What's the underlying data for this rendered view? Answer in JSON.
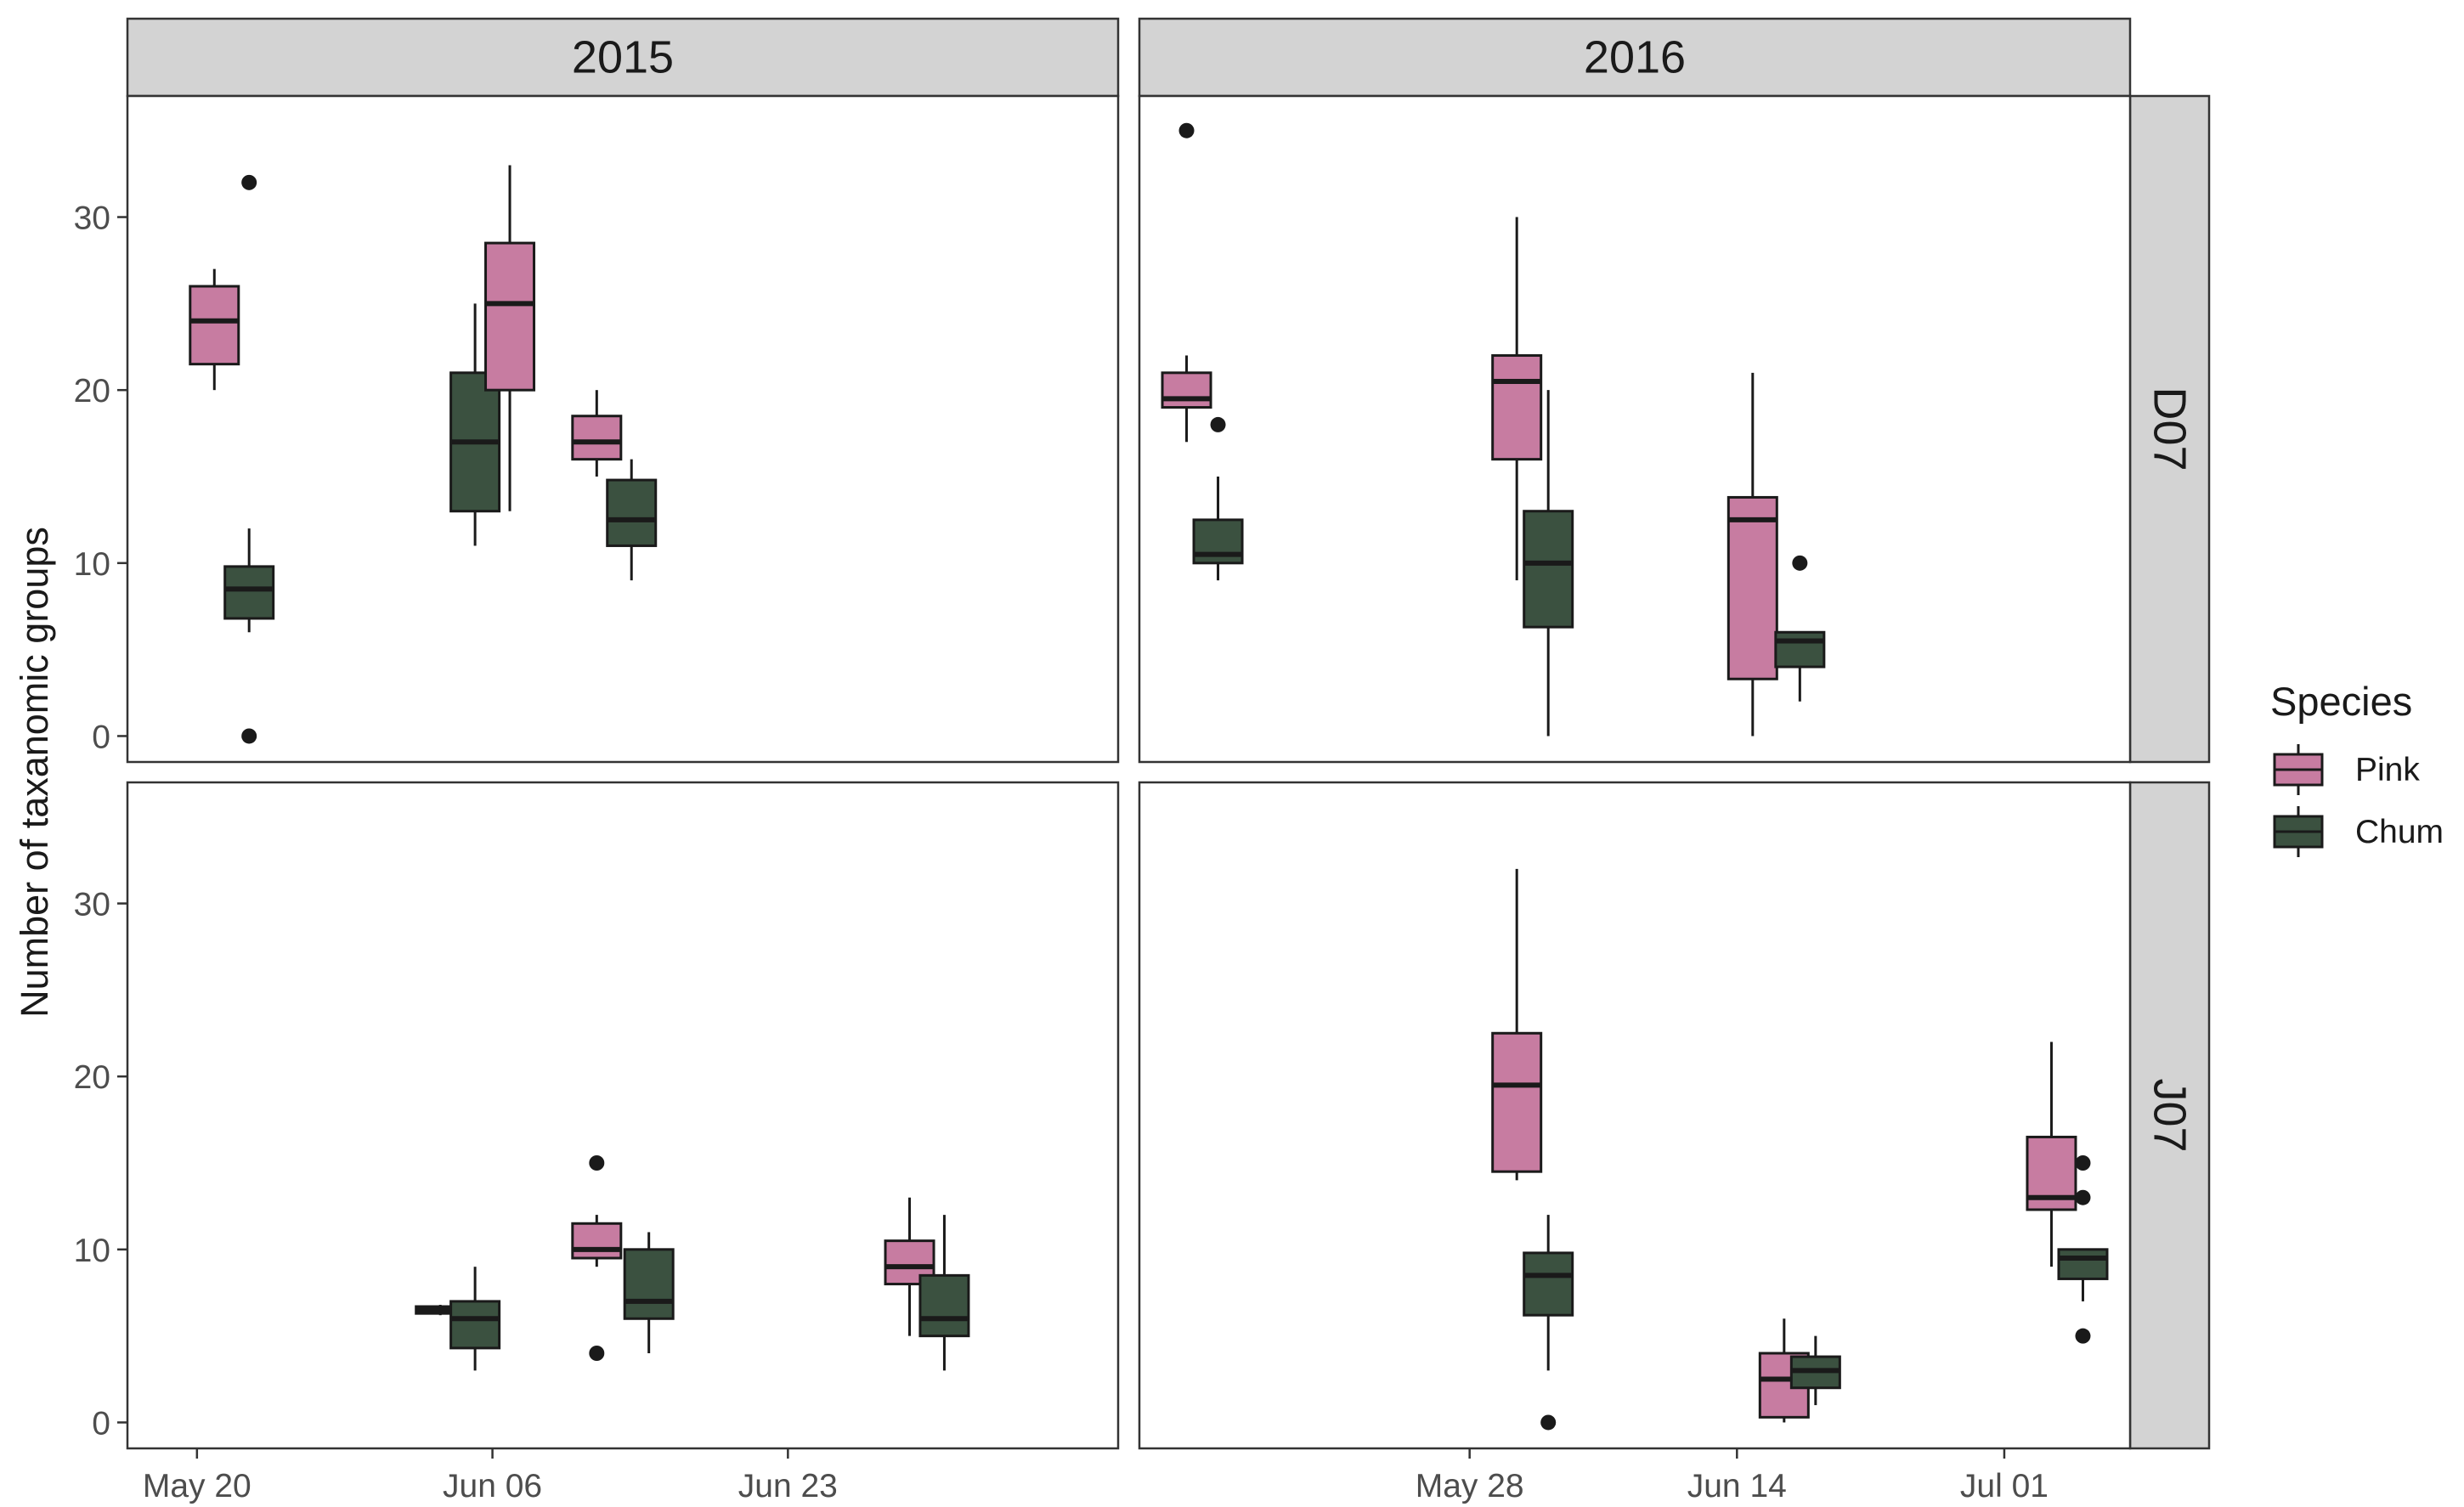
{
  "chart_data": {
    "type": "boxplot",
    "ylabel": "Number of taxanomic groups",
    "xlabel": "",
    "ylim": [
      -1.5,
      37
    ],
    "y_ticks": [
      0,
      10,
      20,
      30
    ],
    "grid": false,
    "legend": {
      "title": "Species",
      "placement": "right",
      "entries": [
        {
          "name": "Pink",
          "color": "#C77CA1"
        },
        {
          "name": "Chum",
          "color": "#3B5140"
        }
      ]
    },
    "facet_columns": [
      "2015",
      "2016"
    ],
    "facet_rows": [
      "D07",
      "J07"
    ],
    "x_axes": {
      "2015": {
        "range": [
          "2015-05-16",
          "2015-07-12"
        ],
        "ticks": [
          {
            "date": "2015-05-20",
            "label": "May 20"
          },
          {
            "date": "2015-06-06",
            "label": "Jun 06"
          },
          {
            "date": "2015-06-23",
            "label": "Jun 23"
          }
        ]
      },
      "2016": {
        "range": [
          "2016-05-07",
          "2016-07-09"
        ],
        "ticks": [
          {
            "date": "2016-05-28",
            "label": "May 28"
          },
          {
            "date": "2016-06-14",
            "label": "Jun 14"
          },
          {
            "date": "2016-07-01",
            "label": "Jul 01"
          }
        ]
      }
    },
    "panels": [
      {
        "year": "2015",
        "site": "D07",
        "boxes": [
          {
            "species": "Pink",
            "date": "2015-05-21",
            "min": 20,
            "q1": 21.5,
            "median": 24,
            "q3": 26,
            "max": 27,
            "outliers": []
          },
          {
            "species": "Chum",
            "date": "2015-05-23",
            "min": 6,
            "q1": 6.8,
            "median": 8.5,
            "q3": 9.8,
            "max": 12,
            "outliers": [
              32,
              0
            ]
          },
          {
            "species": "Chum",
            "date": "2015-06-05",
            "min": 11,
            "q1": 13,
            "median": 17,
            "q3": 21,
            "max": 25,
            "outliers": []
          },
          {
            "species": "Pink",
            "date": "2015-06-07",
            "min": 13,
            "q1": 20,
            "median": 25,
            "q3": 28.5,
            "max": 33,
            "outliers": []
          },
          {
            "species": "Pink",
            "date": "2015-06-12",
            "min": 15,
            "q1": 16,
            "median": 17,
            "q3": 18.5,
            "max": 20,
            "outliers": []
          },
          {
            "species": "Chum",
            "date": "2015-06-14",
            "min": 9,
            "q1": 11,
            "median": 12.5,
            "q3": 14.8,
            "max": 16,
            "outliers": []
          }
        ]
      },
      {
        "year": "2016",
        "site": "D07",
        "boxes": [
          {
            "species": "Pink",
            "date": "2016-05-10",
            "min": 17,
            "q1": 19,
            "median": 19.5,
            "q3": 21,
            "max": 22,
            "outliers": [
              35
            ]
          },
          {
            "species": "Chum",
            "date": "2016-05-12",
            "min": 9,
            "q1": 10,
            "median": 10.5,
            "q3": 12.5,
            "max": 15,
            "outliers": [
              18
            ]
          },
          {
            "species": "Pink",
            "date": "2016-05-31",
            "min": 9,
            "q1": 16,
            "median": 20.5,
            "q3": 22,
            "max": 30,
            "outliers": []
          },
          {
            "species": "Chum",
            "date": "2016-06-02",
            "min": 0,
            "q1": 6.3,
            "median": 10,
            "q3": 13,
            "max": 20,
            "outliers": []
          },
          {
            "species": "Pink",
            "date": "2016-06-15",
            "min": 0,
            "q1": 3.3,
            "median": 12.5,
            "q3": 13.8,
            "max": 21,
            "outliers": []
          },
          {
            "species": "Chum",
            "date": "2016-06-18",
            "min": 2,
            "q1": 4,
            "median": 5.5,
            "q3": 6,
            "max": 6,
            "outliers": [
              10
            ]
          }
        ]
      },
      {
        "year": "2015",
        "site": "J07",
        "boxes": [
          {
            "species": "Pink",
            "date": "2015-06-03",
            "min": 6.2,
            "q1": 6.3,
            "median": 6.5,
            "q3": 6.7,
            "max": 6.8,
            "outliers": []
          },
          {
            "species": "Chum",
            "date": "2015-06-05",
            "min": 3,
            "q1": 4.3,
            "median": 6,
            "q3": 7,
            "max": 9,
            "outliers": []
          },
          {
            "species": "Pink",
            "date": "2015-06-12",
            "min": 9,
            "q1": 9.5,
            "median": 10,
            "q3": 11.5,
            "max": 12,
            "outliers": [
              15,
              4
            ]
          },
          {
            "species": "Chum",
            "date": "2015-06-15",
            "min": 4,
            "q1": 6,
            "median": 7,
            "q3": 10,
            "max": 11,
            "outliers": []
          },
          {
            "species": "Pink",
            "date": "2015-06-30",
            "min": 5,
            "q1": 8,
            "median": 9,
            "q3": 10.5,
            "max": 13,
            "outliers": []
          },
          {
            "species": "Chum",
            "date": "2015-07-02",
            "min": 3,
            "q1": 5,
            "median": 6,
            "q3": 8.5,
            "max": 12,
            "outliers": []
          }
        ]
      },
      {
        "year": "2016",
        "site": "J07",
        "boxes": [
          {
            "species": "Pink",
            "date": "2016-05-31",
            "min": 14,
            "q1": 14.5,
            "median": 19.5,
            "q3": 22.5,
            "max": 32,
            "outliers": []
          },
          {
            "species": "Chum",
            "date": "2016-06-02",
            "min": 3,
            "q1": 6.2,
            "median": 8.5,
            "q3": 9.8,
            "max": 12,
            "outliers": [
              0
            ]
          },
          {
            "species": "Pink",
            "date": "2016-06-17",
            "min": 0,
            "q1": 0.3,
            "median": 2.5,
            "q3": 4,
            "max": 6,
            "outliers": []
          },
          {
            "species": "Chum",
            "date": "2016-06-19",
            "min": 1,
            "q1": 2,
            "median": 3,
            "q3": 3.8,
            "max": 5,
            "outliers": []
          },
          {
            "species": "Pink",
            "date": "2016-07-04",
            "min": 9,
            "q1": 12.3,
            "median": 13,
            "q3": 16.5,
            "max": 22,
            "outliers": []
          },
          {
            "species": "Chum",
            "date": "2016-07-06",
            "min": 7,
            "q1": 8.3,
            "median": 9.5,
            "q3": 10,
            "max": 10,
            "outliers": [
              15,
              13,
              5
            ]
          }
        ]
      }
    ]
  }
}
